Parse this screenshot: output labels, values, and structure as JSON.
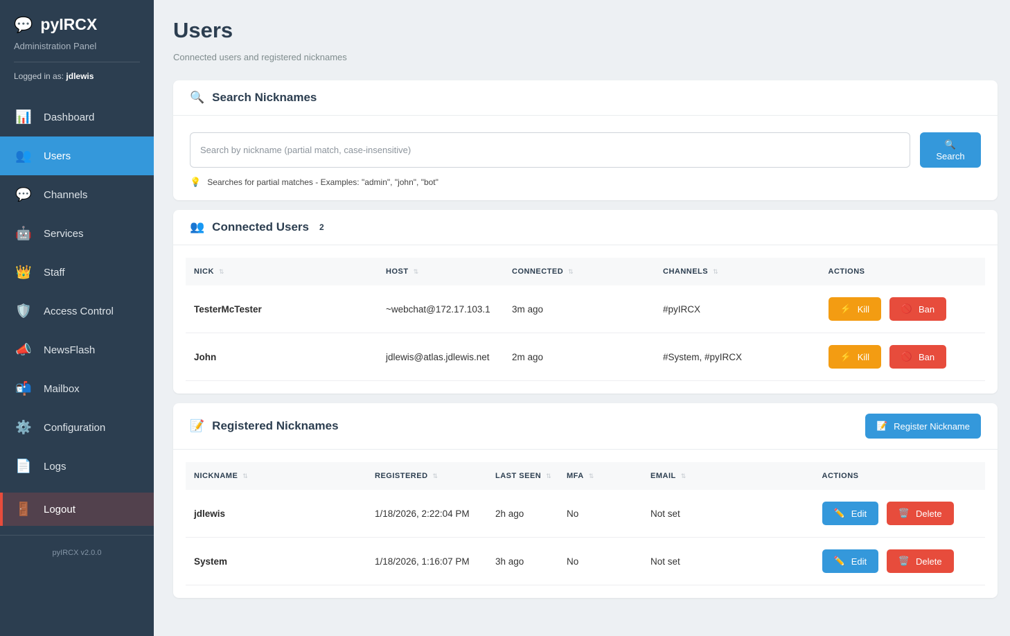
{
  "sidebar": {
    "logo_icon": "💬",
    "app_name": "pyIRCX",
    "app_subtitle": "Administration Panel",
    "logged_in_label": "Logged in as:",
    "username": "jdlewis",
    "items": [
      {
        "icon": "📊",
        "label": "Dashboard",
        "active": false
      },
      {
        "icon": "👥",
        "label": "Users",
        "active": true
      },
      {
        "icon": "💬",
        "label": "Channels",
        "active": false
      },
      {
        "icon": "🤖",
        "label": "Services",
        "active": false
      },
      {
        "icon": "👑",
        "label": "Staff",
        "active": false
      },
      {
        "icon": "🛡️",
        "label": "Access Control",
        "active": false
      },
      {
        "icon": "📣",
        "label": "NewsFlash",
        "active": false
      },
      {
        "icon": "📬",
        "label": "Mailbox",
        "active": false
      },
      {
        "icon": "⚙️",
        "label": "Configuration",
        "active": false
      },
      {
        "icon": "📄",
        "label": "Logs",
        "active": false
      }
    ],
    "logout": {
      "icon": "🚪",
      "label": "Logout"
    },
    "version": "pyIRCX v2.0.0"
  },
  "page": {
    "title": "Users",
    "subtitle": "Connected users and registered nicknames"
  },
  "search": {
    "icon": "🔍",
    "title": "Search Nicknames",
    "placeholder": "Search by nickname (partial match, case-insensitive)",
    "button": {
      "icon": "🔍",
      "label": "Search"
    },
    "hint_icon": "💡",
    "hint": "Searches for partial matches - Examples: \"admin\", \"john\", \"bot\""
  },
  "connected": {
    "icon": "👥",
    "title": "Connected Users",
    "count": "2",
    "columns": [
      {
        "label": "NICK",
        "sort": "⇅"
      },
      {
        "label": "HOST",
        "sort": "⇅"
      },
      {
        "label": "CONNECTED",
        "sort": "⇅"
      },
      {
        "label": "CHANNELS",
        "sort": "⇅"
      },
      {
        "label": "ACTIONS",
        "sort": ""
      }
    ],
    "rows": [
      {
        "nick": "TesterMcTester",
        "host": "~webchat@172.17.103.1",
        "connected": "3m ago",
        "channels": "#pyIRCX"
      },
      {
        "nick": "John",
        "host": "jdlewis@atlas.jdlewis.net",
        "connected": "2m ago",
        "channels": "#System, #pyIRCX"
      }
    ],
    "kill": {
      "icon": "⚡",
      "label": "Kill"
    },
    "ban": {
      "icon": "🚫",
      "label": "Ban"
    }
  },
  "registered": {
    "icon": "📝",
    "title": "Registered Nicknames",
    "register_button": {
      "icon": "📝",
      "label": "Register Nickname"
    },
    "columns": [
      {
        "label": "NICKNAME",
        "sort": "⇅"
      },
      {
        "label": "REGISTERED",
        "sort": "⇅"
      },
      {
        "label": "LAST SEEN",
        "sort": "⇅"
      },
      {
        "label": "MFA",
        "sort": "⇅"
      },
      {
        "label": "EMAIL",
        "sort": "⇅"
      },
      {
        "label": "ACTIONS",
        "sort": ""
      }
    ],
    "rows": [
      {
        "nickname": "jdlewis",
        "registered": "1/18/2026, 2:22:04 PM",
        "last_seen": "2h ago",
        "mfa": "No",
        "email": "Not set"
      },
      {
        "nickname": "System",
        "registered": "1/18/2026, 1:16:07 PM",
        "last_seen": "3h ago",
        "mfa": "No",
        "email": "Not set"
      }
    ],
    "edit": {
      "icon": "✏️",
      "label": "Edit"
    },
    "delete": {
      "icon": "🗑️",
      "label": "Delete"
    }
  },
  "colors": {
    "sidebar_bg": "#2c3e50",
    "accent_blue": "#3498db",
    "kill_orange": "#f39c12",
    "danger_red": "#e74c3c",
    "logout_bg": "#52414d",
    "page_bg": "#edf0f3"
  }
}
